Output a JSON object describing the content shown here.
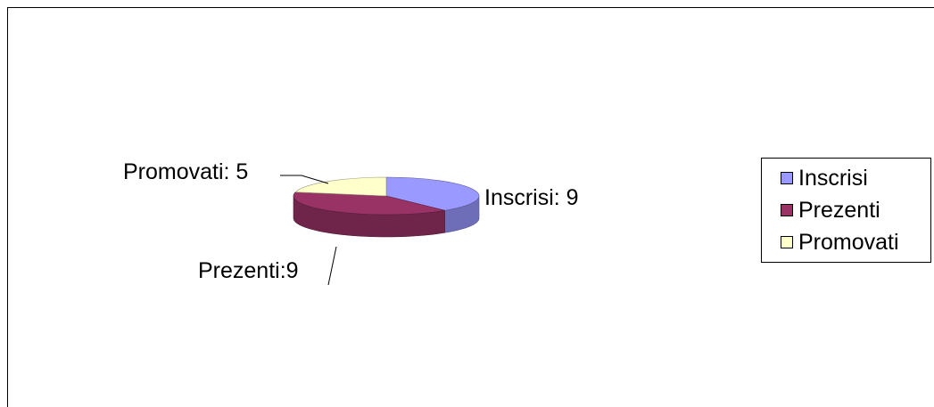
{
  "chart_data": {
    "type": "pie",
    "style": "3d",
    "categories": [
      "Inscrisi",
      "Prezenti",
      "Promovati"
    ],
    "values": [
      9,
      9,
      5
    ],
    "data_labels": [
      "Inscrisi: 9",
      "Prezenti:9",
      "Promovati: 5"
    ],
    "colors": [
      "#9999ff",
      "#993366",
      "#ffffcc"
    ],
    "legend": {
      "placement": "right",
      "entries": [
        "Inscrisi",
        "Prezenti",
        "Promovati"
      ]
    },
    "title": ""
  }
}
